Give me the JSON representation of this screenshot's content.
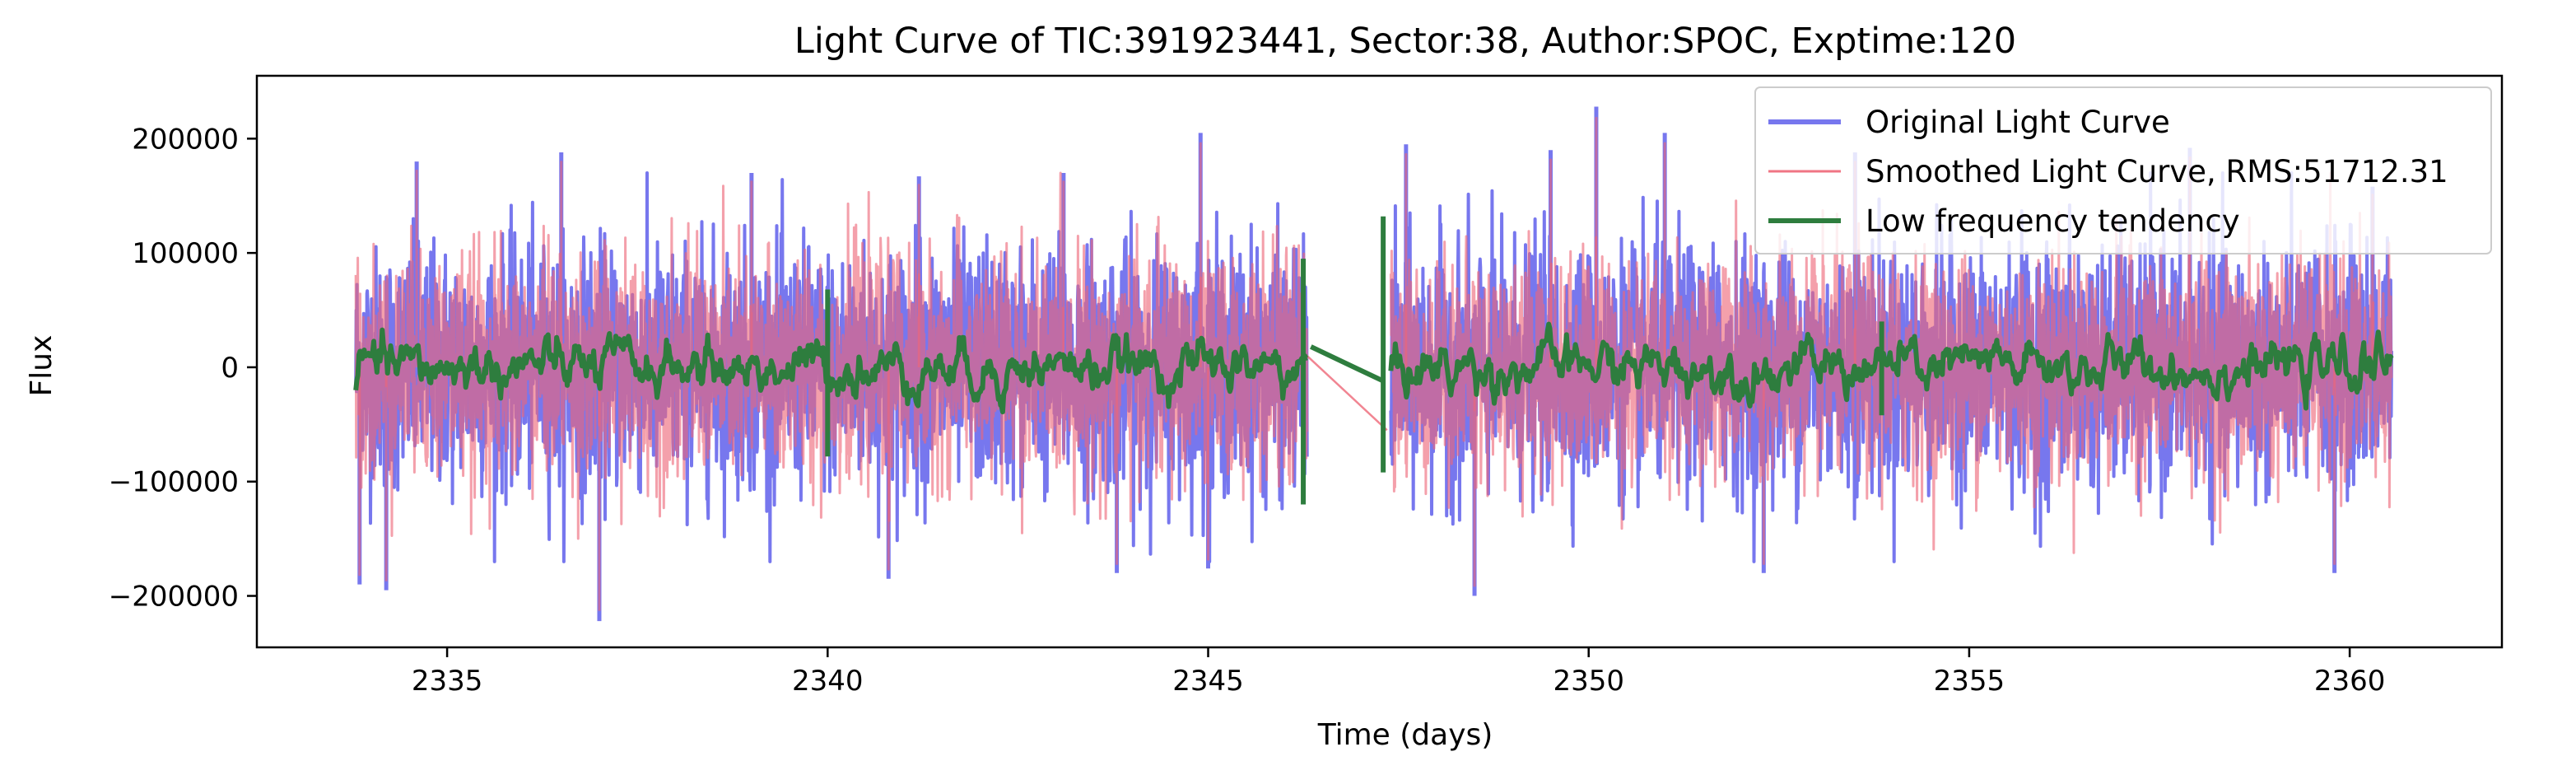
{
  "chart_data": {
    "type": "line",
    "title": "Light Curve of TIC:391923441, Sector:38, Author:SPOC, Exptime:120",
    "xlabel": "Time (days)",
    "ylabel": "Flux",
    "xlim": [
      2332.5,
      2362.0
    ],
    "ylim": [
      -245000,
      255000
    ],
    "xticks": [
      2335,
      2340,
      2345,
      2350,
      2355,
      2360
    ],
    "xtick_labels": [
      "2335",
      "2340",
      "2345",
      "2350",
      "2355",
      "2360"
    ],
    "yticks": [
      -200000,
      -100000,
      0,
      100000,
      200000
    ],
    "ytick_labels": [
      "−200000",
      "−100000",
      "0",
      "100000",
      "200000"
    ],
    "grid": false,
    "legend_position": "top-right",
    "segments": [
      {
        "x_start": 2333.8,
        "x_end": 2346.3
      },
      {
        "x_start": 2347.4,
        "x_end": 2360.55
      }
    ],
    "series": [
      {
        "name": "Original Light Curve",
        "color": "#7777ee",
        "envelope_typical": [
          -110000,
          120000
        ],
        "extremes": [
          {
            "x": 2333.85,
            "y": -190000
          },
          {
            "x": 2334.2,
            "y": -195000
          },
          {
            "x": 2334.6,
            "y": 180000
          },
          {
            "x": 2336.5,
            "y": 188000
          },
          {
            "x": 2337.0,
            "y": -222000
          },
          {
            "x": 2339.0,
            "y": 170000
          },
          {
            "x": 2340.8,
            "y": -185000
          },
          {
            "x": 2341.2,
            "y": 167000
          },
          {
            "x": 2343.1,
            "y": 170000
          },
          {
            "x": 2343.8,
            "y": -180000
          },
          {
            "x": 2344.9,
            "y": 205000
          },
          {
            "x": 2345.0,
            "y": -176000
          },
          {
            "x": 2347.6,
            "y": 195000
          },
          {
            "x": 2348.5,
            "y": -200000
          },
          {
            "x": 2349.5,
            "y": 190000
          },
          {
            "x": 2350.1,
            "y": 228000
          },
          {
            "x": 2351.0,
            "y": 205000
          },
          {
            "x": 2352.3,
            "y": -180000
          },
          {
            "x": 2353.5,
            "y": 188000
          },
          {
            "x": 2357.9,
            "y": 192000
          },
          {
            "x": 2359.8,
            "y": -180000
          },
          {
            "x": 2360.3,
            "y": 158000
          }
        ]
      },
      {
        "name": "Smoothed Light Curve, RMS:51712.31",
        "color": "#ee6677",
        "envelope_typical": [
          -100000,
          110000
        ],
        "rms": 51712.31
      },
      {
        "name": "Low frequency tendency",
        "color": "#2e7d3e",
        "amplitude_typical": 15000,
        "spikes": [
          {
            "x": 2340.0,
            "y_min": -78000,
            "y_max": 68000
          },
          {
            "x": 2346.25,
            "y_min": -120000,
            "y_max": 95000
          },
          {
            "x": 2347.3,
            "y_min": -92000,
            "y_max": 132000
          },
          {
            "x": 2353.85,
            "y_min": -42000,
            "y_max": 40000
          }
        ],
        "gap_bridge": [
          {
            "x": 2346.35,
            "y": 18000
          },
          {
            "x": 2347.3,
            "y": -12000
          }
        ]
      }
    ]
  }
}
